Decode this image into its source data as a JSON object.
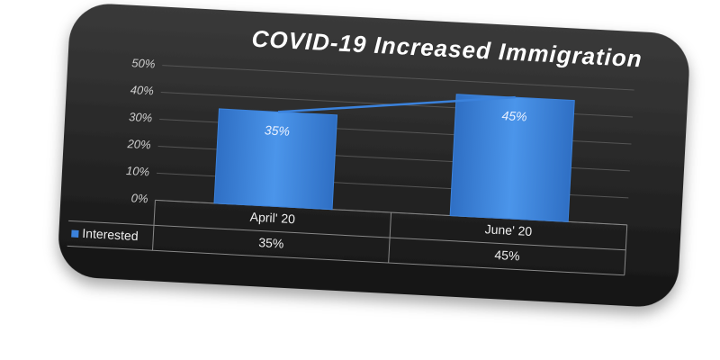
{
  "chart_data": {
    "type": "bar",
    "title": "COVID-19 Increased Immigration",
    "categories": [
      "April' 20",
      "June' 20"
    ],
    "series": [
      {
        "name": "Interested",
        "color": "#3b82dc",
        "values": [
          35,
          45
        ],
        "value_labels": [
          "35%",
          "45%"
        ]
      }
    ],
    "ylim": [
      0,
      50
    ],
    "yticks": [
      {
        "value": 0,
        "label": "0%"
      },
      {
        "value": 10,
        "label": "10%"
      },
      {
        "value": 20,
        "label": "20%"
      },
      {
        "value": 30,
        "label": "30%"
      },
      {
        "value": 40,
        "label": "40%"
      },
      {
        "value": 50,
        "label": "50%"
      }
    ],
    "grid": true
  }
}
